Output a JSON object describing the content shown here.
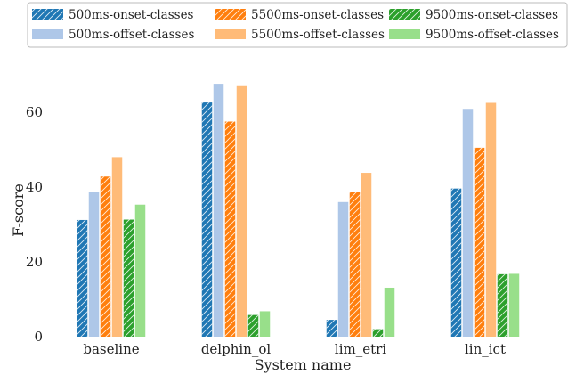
{
  "chart_data": {
    "type": "bar",
    "xlabel": "System name",
    "ylabel": "F-score",
    "ylim": [
      0,
      70
    ],
    "yticks": [
      0,
      20,
      40,
      60
    ],
    "grid": false,
    "legend_placement": "top",
    "categories": [
      "baseline",
      "delphin_ol",
      "lim_etri",
      "lin_ict"
    ],
    "series": [
      {
        "name": "500ms-onset-classes",
        "color": "#1f77b4",
        "hatch": true,
        "values": [
          31.2,
          62.6,
          4.5,
          39.6
        ]
      },
      {
        "name": "500ms-offset-classes",
        "color": "#aec7e8",
        "hatch": false,
        "values": [
          38.6,
          67.6,
          36.0,
          60.9
        ]
      },
      {
        "name": "5500ms-onset-classes",
        "color": "#ff7f0e",
        "hatch": true,
        "values": [
          42.8,
          57.5,
          38.6,
          50.5
        ]
      },
      {
        "name": "5500ms-offset-classes",
        "color": "#ffbb78",
        "hatch": false,
        "values": [
          48.0,
          67.2,
          43.8,
          62.5
        ]
      },
      {
        "name": "9500ms-onset-classes",
        "color": "#2ca02c",
        "hatch": true,
        "values": [
          31.3,
          5.8,
          2.0,
          16.7
        ]
      },
      {
        "name": "9500ms-offset-classes",
        "color": "#98df8a",
        "hatch": false,
        "values": [
          35.3,
          6.8,
          13.1,
          16.8
        ]
      }
    ]
  }
}
